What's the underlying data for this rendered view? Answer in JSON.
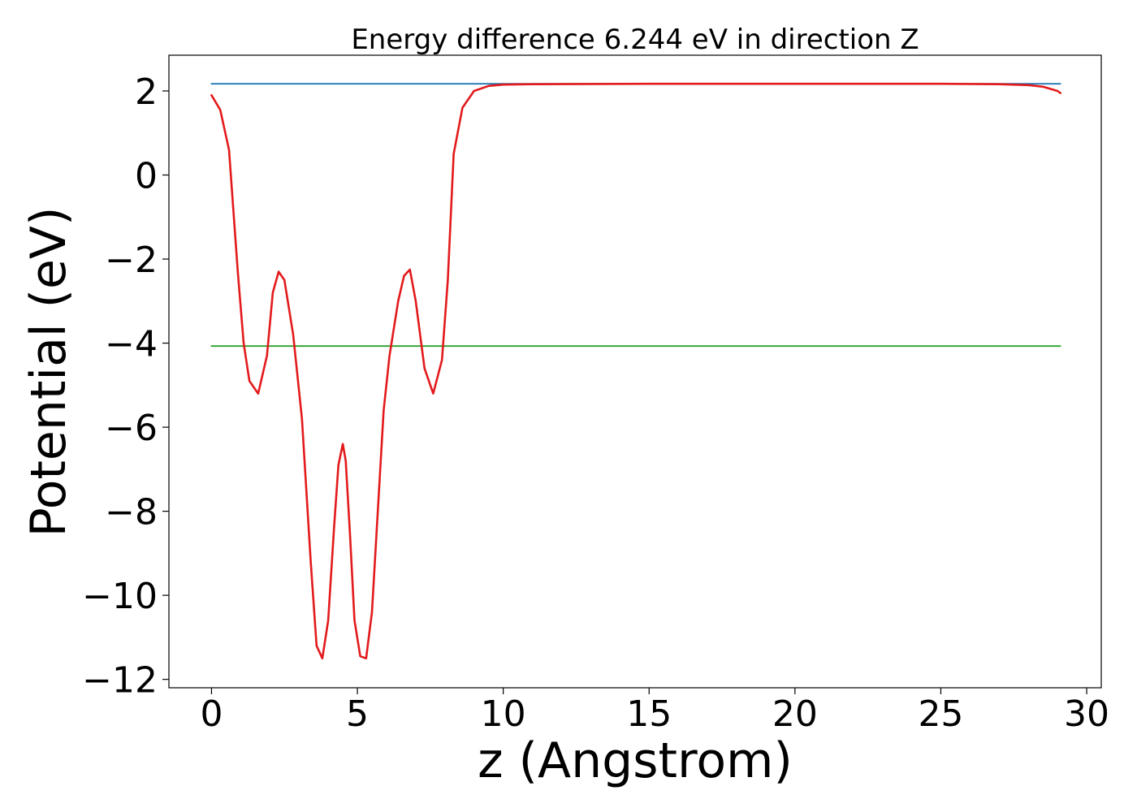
{
  "chart_data": {
    "type": "line",
    "title": "Energy difference 6.244 eV in direction Z",
    "xlabel": "z (Angstrom)",
    "ylabel": "Potential (eV)",
    "xlim": [
      -1.46,
      30.5
    ],
    "ylim": [
      -12.2,
      2.85
    ],
    "x_ticks": [
      0,
      5,
      10,
      15,
      20,
      25,
      30
    ],
    "x_tick_labels": [
      "0",
      "5",
      "10",
      "15",
      "20",
      "25",
      "30"
    ],
    "y_ticks": [
      2,
      0,
      -2,
      -4,
      -6,
      -8,
      -10,
      -12
    ],
    "y_tick_labels": [
      "2",
      "0",
      "−2",
      "−4",
      "−6",
      "−8",
      "−10",
      "−12"
    ],
    "grid": false,
    "legend": "none",
    "series": [
      {
        "color": "#1f77b4",
        "x": [
          0,
          29.1
        ],
        "y": [
          2.17,
          2.17
        ]
      },
      {
        "color": "#2ca02c",
        "x": [
          0,
          29.1
        ],
        "y": [
          -4.07,
          -4.07
        ]
      },
      {
        "color": "#e31a1c",
        "x": [
          0,
          0.3,
          0.6,
          0.9,
          1.1,
          1.3,
          1.6,
          1.9,
          2.1,
          2.3,
          2.5,
          2.8,
          3.1,
          3.4,
          3.6,
          3.8,
          4.0,
          4.2,
          4.35,
          4.5,
          4.6,
          4.75,
          4.9,
          5.1,
          5.3,
          5.5,
          5.7,
          5.9,
          6.1,
          6.4,
          6.6,
          6.8,
          7.0,
          7.3,
          7.6,
          7.9,
          8.1,
          8.3,
          8.6,
          9.0,
          9.5,
          10.0,
          11.0,
          15.0,
          20.0,
          25.0,
          27.0,
          28.0,
          28.5,
          29.0,
          29.1
        ],
        "y": [
          1.9,
          1.55,
          0.6,
          -2.3,
          -4.0,
          -4.9,
          -5.2,
          -4.3,
          -2.8,
          -2.3,
          -2.5,
          -3.8,
          -5.8,
          -9.2,
          -11.2,
          -11.5,
          -10.6,
          -8.4,
          -6.9,
          -6.4,
          -6.8,
          -8.6,
          -10.6,
          -11.45,
          -11.5,
          -10.4,
          -8.0,
          -5.6,
          -4.3,
          -3.0,
          -2.4,
          -2.25,
          -3.0,
          -4.6,
          -5.2,
          -4.4,
          -2.5,
          0.5,
          1.6,
          2.0,
          2.12,
          2.15,
          2.16,
          2.17,
          2.17,
          2.17,
          2.16,
          2.14,
          2.1,
          2.0,
          1.95
        ]
      }
    ]
  }
}
